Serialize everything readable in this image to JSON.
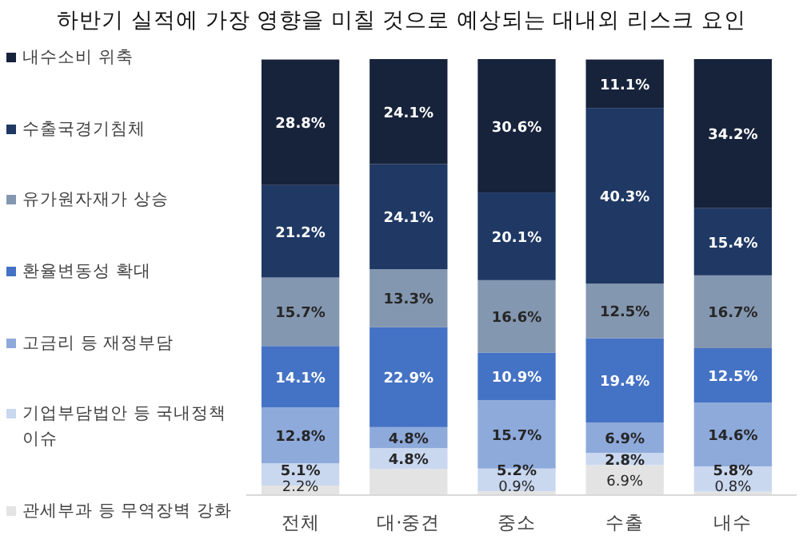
{
  "chart_data": {
    "type": "bar",
    "stacked": true,
    "title": "하반기 실적에 가장 영향을 미칠 것으로 예상되는 대내외 리스크 요인",
    "categories": [
      "전체",
      "대·중견",
      "중소",
      "수출",
      "내수"
    ],
    "legend": "left",
    "series": [
      {
        "name": "관세부과 등 무역장벽 강화",
        "color": "#e3e3e3",
        "values": [
          2.2,
          6.0,
          0.9,
          6.9,
          0.8
        ],
        "value_labels": [
          "2.2%",
          null,
          "0.9%",
          "6.9%",
          "0.8%"
        ]
      },
      {
        "name": "기업부담법안 등 국내정책 이슈",
        "color": "#c9d7ef",
        "values": [
          5.1,
          4.8,
          5.2,
          2.8,
          5.8
        ],
        "value_labels": [
          "5.1%",
          "4.8%",
          "5.2%",
          "2.8%",
          "5.8%"
        ]
      },
      {
        "name": "고금리 등 재정부담",
        "color": "#8eaadb",
        "values": [
          12.8,
          4.8,
          15.7,
          6.9,
          14.6
        ],
        "value_labels": [
          "12.8%",
          "4.8%",
          "15.7%",
          "6.9%",
          "14.6%"
        ]
      },
      {
        "name": "환율변동성 확대",
        "color": "#4472c4",
        "values": [
          14.1,
          22.9,
          10.9,
          19.4,
          12.5
        ],
        "value_labels": [
          "14.1%",
          "22.9%",
          "10.9%",
          "19.4%",
          "12.5%"
        ]
      },
      {
        "name": "유가원자재가 상승",
        "color": "#8497b0",
        "values": [
          15.7,
          13.3,
          16.6,
          12.5,
          16.7
        ],
        "value_labels": [
          "15.7%",
          "13.3%",
          "16.6%",
          "12.5%",
          "16.7%"
        ]
      },
      {
        "name": "수출국경기침체",
        "color": "#1f3864",
        "values": [
          21.2,
          24.1,
          20.1,
          40.3,
          15.4
        ],
        "value_labels": [
          "21.2%",
          "24.1%",
          "20.1%",
          "40.3%",
          "15.4%"
        ]
      },
      {
        "name": "내수소비 위축",
        "color": "#17233b",
        "values": [
          28.8,
          24.1,
          30.6,
          11.1,
          34.2
        ],
        "value_labels": [
          "28.8%",
          "24.1%",
          "30.6%",
          "11.1%",
          "34.2%"
        ]
      }
    ]
  }
}
